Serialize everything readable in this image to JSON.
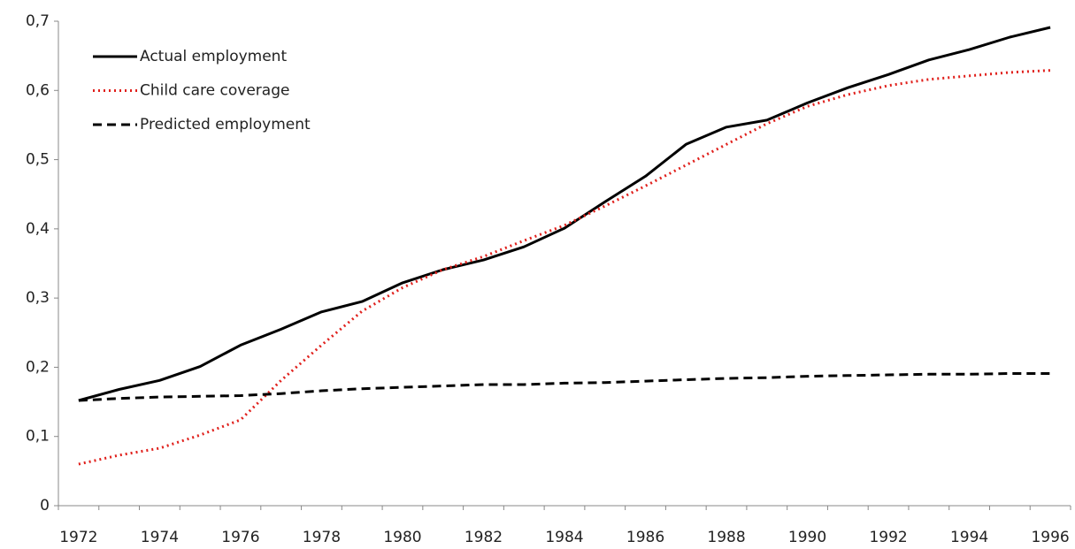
{
  "chart_data": {
    "type": "line",
    "categories": [
      "1972",
      null,
      "1974",
      null,
      "1976",
      null,
      "1978",
      null,
      "1980",
      null,
      "1982",
      null,
      "1984",
      null,
      "1986",
      null,
      "1988",
      null,
      "1990",
      null,
      "1992",
      null,
      "1994",
      null,
      "1996"
    ],
    "series": [
      {
        "name": "Actual employment",
        "color": "#000000",
        "dash": "solid",
        "values": [
          0.152,
          0.168,
          0.181,
          0.201,
          0.232,
          0.255,
          0.28,
          0.295,
          0.322,
          0.341,
          0.355,
          0.374,
          0.401,
          0.439,
          0.476,
          0.522,
          0.547,
          0.557,
          0.582,
          0.604,
          0.623,
          0.644,
          0.659,
          0.677,
          0.691
        ]
      },
      {
        "name": "Child care coverage",
        "color": "#e0201c",
        "dash": "dotted",
        "values": [
          0.06,
          0.073,
          0.083,
          0.102,
          0.124,
          0.181,
          0.232,
          0.281,
          0.315,
          0.341,
          0.36,
          0.383,
          0.405,
          0.433,
          0.462,
          0.492,
          0.522,
          0.552,
          0.577,
          0.594,
          0.607,
          0.616,
          0.621,
          0.626,
          0.629
        ]
      },
      {
        "name": "Predicted employment",
        "color": "#000000",
        "dash": "dashed",
        "values": [
          0.152,
          0.155,
          0.157,
          0.158,
          0.159,
          0.162,
          0.166,
          0.169,
          0.171,
          0.173,
          0.175,
          0.175,
          0.177,
          0.178,
          0.18,
          0.182,
          0.184,
          0.185,
          0.187,
          0.188,
          0.189,
          0.19,
          0.19,
          0.191,
          0.191
        ]
      }
    ],
    "ylim": [
      0,
      0.7
    ],
    "yticks": [
      0,
      {
        "value": 0.1,
        "label": "0,1"
      },
      {
        "value": 0.2,
        "label": "0,2"
      },
      {
        "value": 0.3,
        "label": "0,3"
      },
      {
        "value": 0.4,
        "label": "0,4"
      },
      {
        "value": 0.5,
        "label": "0,5"
      },
      {
        "value": 0.6,
        "label": "0,6"
      },
      {
        "value": 0.7,
        "label": "0,7"
      }
    ],
    "grid": false,
    "legend": "top-left"
  }
}
